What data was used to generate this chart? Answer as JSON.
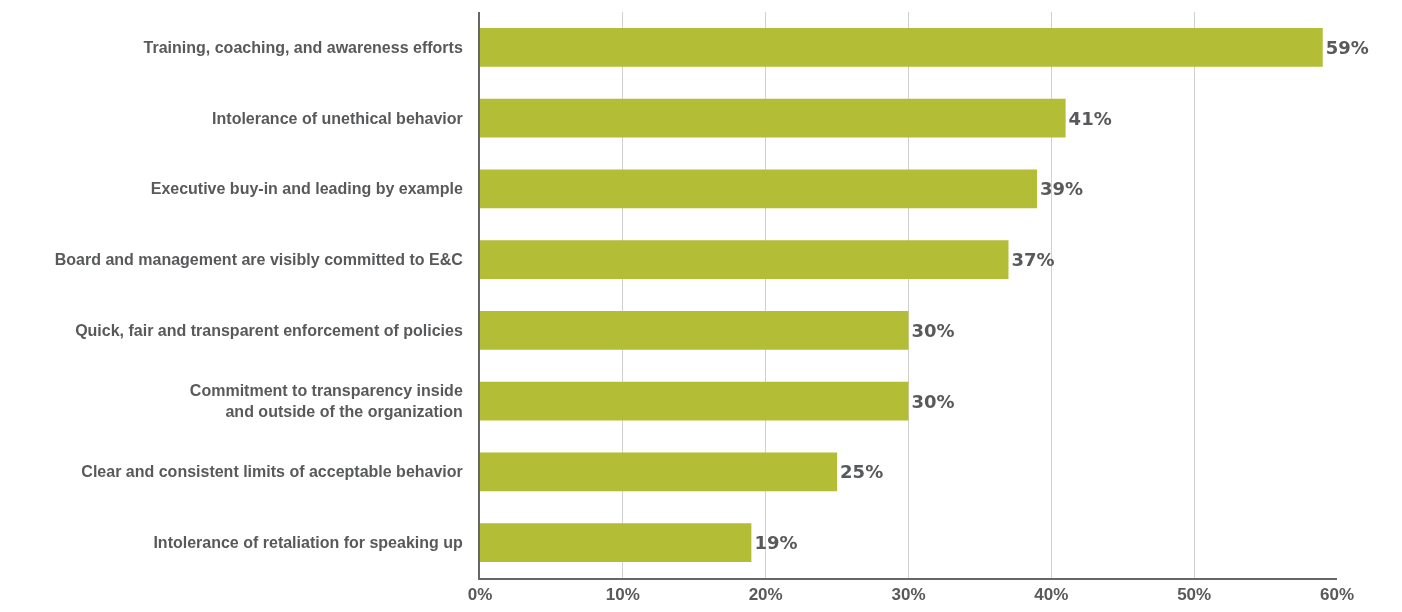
{
  "chart_data": {
    "type": "bar",
    "orientation": "horizontal",
    "categories": [
      "Training, coaching, and awareness efforts",
      "Intolerance of unethical behavior",
      "Executive buy-in and leading by example",
      "Board and management are visibly committed to E&C",
      "Quick, fair and transparent enforcement of policies",
      "Commitment to transparency inside\nand outside of the organization",
      "Clear and consistent limits of acceptable behavior",
      "Intolerance of retaliation for speaking up"
    ],
    "values": [
      59,
      41,
      39,
      37,
      30,
      30,
      25,
      19
    ],
    "value_labels": [
      "59%",
      "41%",
      "39%",
      "37%",
      "30%",
      "30%",
      "25%",
      "19%"
    ],
    "color": "#b3bd35",
    "xlim": [
      0,
      60
    ],
    "xticks": [
      {
        "value": 0,
        "label": "0%"
      },
      {
        "value": 10,
        "label": "10%"
      },
      {
        "value": 20,
        "label": "20%"
      },
      {
        "value": 30,
        "label": "30%"
      },
      {
        "value": 40,
        "label": "40%"
      },
      {
        "value": 50,
        "label": "50%"
      },
      {
        "value": 60,
        "label": "60%"
      }
    ],
    "grid": "x"
  }
}
